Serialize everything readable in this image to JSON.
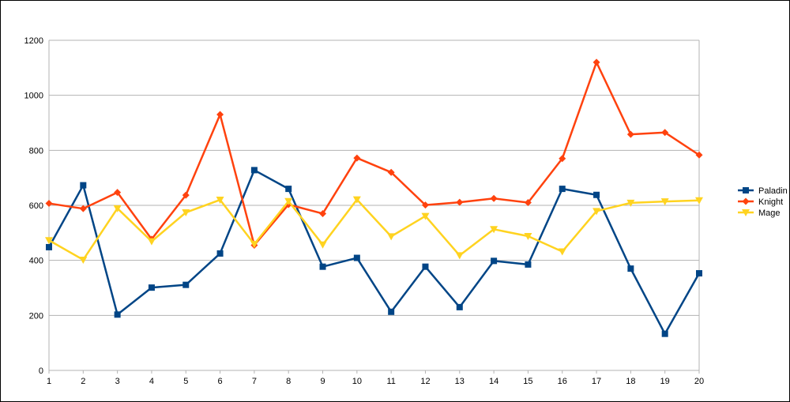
{
  "chart_data": {
    "type": "line",
    "title": "",
    "xlabel": "",
    "ylabel": "",
    "categories": [
      "1",
      "2",
      "3",
      "4",
      "5",
      "6",
      "7",
      "8",
      "9",
      "10",
      "11",
      "12",
      "13",
      "14",
      "15",
      "16",
      "17",
      "18",
      "19",
      "20"
    ],
    "ylim": [
      0,
      1200
    ],
    "yticks": [
      0,
      200,
      400,
      600,
      800,
      1000,
      1200
    ],
    "grid": true,
    "legend_position": "right",
    "series": [
      {
        "name": "Paladin",
        "color": "#004586",
        "marker": "square",
        "values": [
          448,
          673,
          203,
          301,
          311,
          425,
          728,
          660,
          377,
          409,
          213,
          377,
          230,
          398,
          385,
          660,
          638,
          370,
          133,
          353
        ]
      },
      {
        "name": "Knight",
        "color": "#ff420e",
        "marker": "diamond",
        "values": [
          607,
          588,
          647,
          477,
          637,
          930,
          455,
          603,
          570,
          772,
          720,
          601,
          611,
          625,
          610,
          770,
          1120,
          858,
          865,
          783
        ]
      },
      {
        "name": "Mage",
        "color": "#ffd320",
        "marker": "triangle-down",
        "values": [
          473,
          402,
          589,
          469,
          574,
          620,
          459,
          615,
          457,
          621,
          487,
          561,
          418,
          513,
          488,
          432,
          579,
          609,
          614,
          618
        ]
      }
    ]
  }
}
